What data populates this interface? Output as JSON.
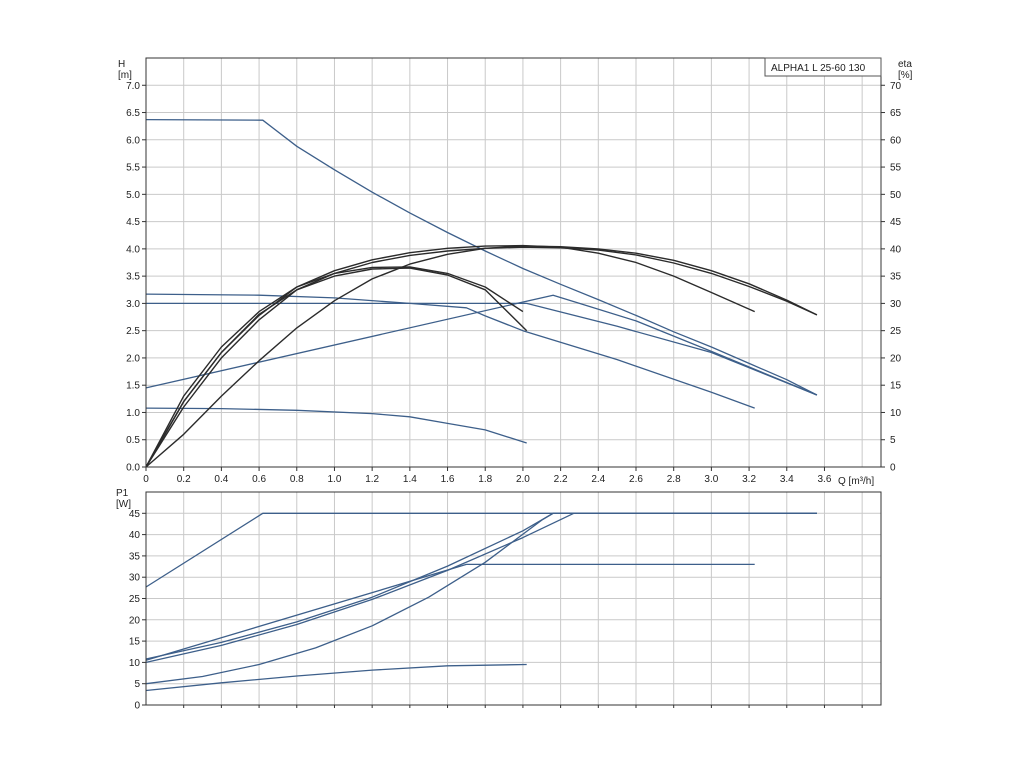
{
  "chart_data": [
    {
      "id": "head_eta",
      "type": "line",
      "title": "ALPHA1 L 25-60 130",
      "xlabel": "Q [m³/h]",
      "ylabel": "H\n[m]",
      "ylabel_right": "eta\n[%]",
      "xlim": [
        0,
        3.9
      ],
      "ylim": [
        0,
        7.5
      ],
      "ylim_right": [
        0,
        75
      ],
      "x_ticks": [
        "0",
        "0.2",
        "0.4",
        "0.6",
        "0.8",
        "1.0",
        "1.2",
        "1.4",
        "1.6",
        "1.8",
        "2.0",
        "2.2",
        "2.4",
        "2.6",
        "2.8",
        "3.0",
        "3.2",
        "3.4",
        "3.6"
      ],
      "y_ticks": [
        "0.0",
        "0.5",
        "1.0",
        "1.5",
        "2.0",
        "2.5",
        "3.0",
        "3.5",
        "4.0",
        "4.5",
        "5.0",
        "5.5",
        "6.0",
        "6.5",
        "7.0"
      ],
      "y_ticks_right": [
        "0",
        "5",
        "10",
        "15",
        "20",
        "25",
        "30",
        "35",
        "40",
        "45",
        "50",
        "55",
        "60",
        "65",
        "70"
      ],
      "grid": true,
      "legend": "top-right",
      "colors": {
        "head": "#3d5f8a",
        "eta": "#2b2b2b",
        "grid": "#c9c9c9",
        "frame": "#333333"
      },
      "series": [
        {
          "kind": "head",
          "axis": "left",
          "x": [
            0,
            0.62,
            0.8,
            1.0,
            1.2,
            1.4,
            1.6,
            1.8,
            2.0,
            2.2,
            2.4,
            2.6,
            2.8,
            3.0,
            3.2,
            3.4,
            3.56
          ],
          "y": [
            6.37,
            6.36,
            5.88,
            5.45,
            5.04,
            4.66,
            4.3,
            3.96,
            3.64,
            3.35,
            3.07,
            2.78,
            2.48,
            2.2,
            1.9,
            1.6,
            1.32
          ]
        },
        {
          "kind": "head",
          "axis": "left",
          "x": [
            0,
            2.02,
            2.5,
            3.0,
            3.56
          ],
          "y": [
            3.0,
            3.0,
            2.58,
            2.1,
            1.32
          ]
        },
        {
          "kind": "head",
          "axis": "left",
          "x": [
            0,
            0.6,
            1.0,
            1.4,
            1.7,
            1.8,
            2.0,
            2.5,
            3.0,
            3.23
          ],
          "y": [
            3.17,
            3.15,
            3.1,
            3.0,
            2.92,
            2.77,
            2.5,
            1.97,
            1.37,
            1.08
          ]
        },
        {
          "kind": "head",
          "axis": "left",
          "x": [
            0,
            0.4,
            0.8,
            1.2,
            1.4,
            1.6,
            1.8,
            2.02
          ],
          "y": [
            1.08,
            1.07,
            1.04,
            0.98,
            0.92,
            0.8,
            0.68,
            0.44
          ]
        },
        {
          "kind": "head",
          "axis": "left",
          "x": [
            0,
            2.16,
            2.3,
            2.6,
            3.0,
            3.56
          ],
          "y": [
            1.45,
            3.15,
            3.0,
            2.68,
            2.12,
            1.32
          ]
        },
        {
          "kind": "eta",
          "axis": "right",
          "x": [
            0,
            0.2,
            0.4,
            0.6,
            0.8,
            1.0,
            1.2,
            1.4,
            1.6,
            1.8,
            2.0,
            2.2,
            2.4,
            2.6,
            2.8,
            3.0,
            3.2,
            3.4,
            3.56
          ],
          "y": [
            0,
            11,
            20,
            27,
            32.5,
            35.5,
            37.5,
            38.8,
            39.6,
            40.1,
            40.3,
            40.2,
            39.8,
            38.9,
            37.4,
            35.5,
            33.1,
            30.4,
            27.9
          ]
        },
        {
          "kind": "eta",
          "axis": "right",
          "x": [
            0,
            0.2,
            0.4,
            0.6,
            0.8,
            1.0,
            1.2,
            1.4,
            1.6,
            1.8,
            2.0,
            2.2,
            2.4,
            2.6,
            2.8,
            3.0,
            3.23
          ],
          "y": [
            0,
            12,
            21,
            27.8,
            33,
            36,
            38,
            39.3,
            40.1,
            40.5,
            40.6,
            40.3,
            39.2,
            37.5,
            35,
            32,
            28.5
          ]
        },
        {
          "kind": "eta",
          "axis": "right",
          "x": [
            0,
            0.2,
            0.4,
            0.6,
            0.8,
            1.0,
            1.2,
            1.4,
            1.6,
            1.8,
            2.0
          ],
          "y": [
            0,
            13,
            22,
            28.5,
            33,
            35.5,
            36.6,
            36.7,
            35.5,
            33,
            28.5
          ]
        },
        {
          "kind": "eta",
          "axis": "right",
          "x": [
            0,
            0.2,
            0.4,
            0.6,
            0.8,
            1.0,
            1.2,
            1.4,
            1.6,
            1.8,
            2.02
          ],
          "y": [
            0,
            12,
            21,
            28,
            32.5,
            35,
            36.3,
            36.5,
            35.2,
            32.5,
            25
          ]
        },
        {
          "kind": "eta",
          "axis": "right",
          "x": [
            0,
            0.2,
            0.4,
            0.6,
            0.8,
            1.0,
            1.2,
            1.4,
            1.6,
            1.8,
            2.0,
            2.2,
            2.4,
            2.6,
            2.8,
            3.0,
            3.2,
            3.4,
            3.56
          ],
          "y": [
            0,
            6,
            13,
            19.5,
            25.5,
            30.5,
            34.5,
            37.2,
            39,
            40.1,
            40.5,
            40.4,
            40,
            39.2,
            37.9,
            36,
            33.6,
            30.6,
            27.9
          ]
        }
      ]
    },
    {
      "id": "power",
      "type": "line",
      "xlabel": "",
      "ylabel": "P1\n[W]",
      "xlim": [
        0,
        3.9
      ],
      "ylim": [
        0,
        50
      ],
      "y_ticks": [
        "0",
        "5",
        "10",
        "15",
        "20",
        "25",
        "30",
        "35",
        "40",
        "45"
      ],
      "grid": true,
      "colors": {
        "power": "#3d5f8a"
      },
      "series": [
        {
          "x": [
            0,
            0.62,
            3.56
          ],
          "y": [
            27.7,
            45,
            45
          ]
        },
        {
          "x": [
            0,
            1.7,
            3.23
          ],
          "y": [
            10.5,
            33,
            33
          ]
        },
        {
          "x": [
            0,
            0.4,
            0.8,
            1.2,
            1.6,
            2.0,
            2.16,
            3.56
          ],
          "y": [
            10.8,
            14.7,
            19.5,
            25.3,
            32.6,
            40.9,
            45,
            45
          ]
        },
        {
          "x": [
            0,
            0.4,
            0.8,
            1.2,
            1.6,
            2.0,
            2.27,
            3.56
          ],
          "y": [
            10,
            14,
            18.9,
            24.8,
            31.6,
            39.3,
            45,
            45
          ]
        },
        {
          "x": [
            0,
            0.3,
            0.6,
            0.9,
            1.2,
            1.5,
            1.8,
            2.1,
            2.16,
            3.56
          ],
          "y": [
            5,
            6.7,
            9.5,
            13.4,
            18.6,
            25.3,
            33.5,
            43.4,
            45,
            45
          ]
        },
        {
          "x": [
            0,
            0.4,
            0.8,
            1.2,
            1.6,
            2.02
          ],
          "y": [
            3.4,
            5.2,
            6.8,
            8.2,
            9.2,
            9.5
          ]
        }
      ]
    }
  ]
}
